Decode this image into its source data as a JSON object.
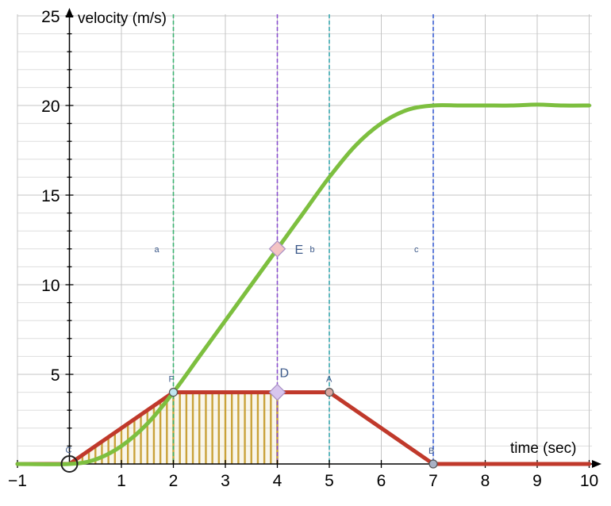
{
  "chart_data": {
    "type": "line",
    "xlabel": "time (sec)",
    "ylabel": "velocity (m/s)",
    "xlim": [
      -1,
      10
    ],
    "ylim": [
      0,
      25
    ],
    "x_ticks": [
      -1,
      1,
      2,
      3,
      4,
      5,
      6,
      7,
      8,
      9,
      10
    ],
    "x_tick_labels": [
      "−1",
      "1",
      "2",
      "3",
      "4",
      "5",
      "6",
      "7",
      "8",
      "9",
      "10"
    ],
    "y_ticks": [
      5,
      10,
      15,
      20,
      25
    ],
    "y_tick_labels": [
      "5",
      "10",
      "15",
      "20",
      "25"
    ],
    "grid": true,
    "series": [
      {
        "color": "#7dbf3f",
        "x": [
          -1,
          0,
          0.5,
          1,
          1.5,
          2,
          2.5,
          3,
          3.5,
          4,
          4.5,
          5,
          5.5,
          6,
          6.5,
          7,
          7.5,
          8,
          8.5,
          9,
          9.5,
          10
        ],
        "y": [
          0,
          0,
          0.25,
          1,
          2.25,
          4,
          6,
          8,
          10,
          12,
          14,
          16,
          17.75,
          19,
          19.75,
          20,
          20,
          20,
          20,
          20.05,
          20,
          20
        ]
      },
      {
        "color": "#c0392b",
        "x": [
          -1,
          0,
          2,
          4,
          5,
          7,
          10
        ],
        "y": [
          0,
          0,
          4,
          4,
          4,
          0,
          0
        ]
      }
    ],
    "shaded_area": {
      "color": "#c9a23a",
      "x_from": 0,
      "x_to": 4,
      "under": "piecewise"
    },
    "vertical_lines": [
      {
        "x": 2,
        "color": "#3cb371",
        "label": "a"
      },
      {
        "x": 4,
        "color": "#8a4fd0",
        "label": "b"
      },
      {
        "x": 5,
        "color": "#3aa9b0",
        "label": ""
      },
      {
        "x": 7,
        "color": "#3b5fd4",
        "label": "c"
      }
    ],
    "points": [
      {
        "label": "C",
        "x": 0,
        "y": 0,
        "fill": "#ffffff",
        "shape": "circle"
      },
      {
        "label": "F",
        "x": 2,
        "y": 4,
        "fill": "#bfe6ef",
        "shape": "circle"
      },
      {
        "label": "D",
        "x": 4,
        "y": 4,
        "fill": "#d8c6ee",
        "shape": "diamond"
      },
      {
        "label": "A",
        "x": 5,
        "y": 4,
        "fill": "#d9a7a0",
        "shape": "circle"
      },
      {
        "label": "B",
        "x": 7,
        "y": 0,
        "fill": "#a9b1c4",
        "shape": "circle"
      },
      {
        "label": "E",
        "x": 4,
        "y": 12,
        "fill": "#f4c4c4",
        "shape": "diamond"
      }
    ]
  }
}
